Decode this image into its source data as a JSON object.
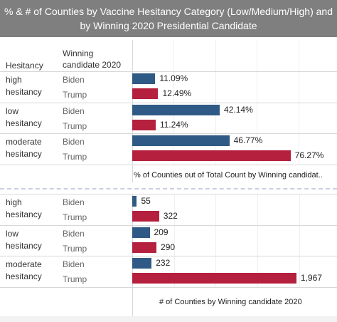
{
  "title": "% & # of Counties by Vaccine Hesitancy Category (Low/Medium/High) and by Winning 2020 Presidential Candidate",
  "headers": {
    "hesitancy": "Hesitancy",
    "candidate": "Winning candidate 2020"
  },
  "colors": {
    "biden": "#2f5a85",
    "trump": "#b5203e"
  },
  "chart_data": [
    {
      "type": "bar",
      "categories": [
        "high hesitancy",
        "low hesitancy",
        "moderate hesitancy"
      ],
      "candidates": [
        "Biden",
        "Trump"
      ],
      "series": [
        {
          "name": "Biden",
          "values": [
            11.09,
            42.14,
            46.77
          ],
          "labels": [
            "11.09%",
            "42.14%",
            "46.77%"
          ]
        },
        {
          "name": "Trump",
          "values": [
            12.49,
            11.24,
            76.27
          ],
          "labels": [
            "12.49%",
            "11.24%",
            "76.27%"
          ]
        }
      ],
      "xlabel": "% of Counties out of Total Count by Winning candidat..",
      "xlim": [
        0,
        100
      ]
    },
    {
      "type": "bar",
      "categories": [
        "high hesitancy",
        "low hesitancy",
        "moderate hesitancy"
      ],
      "candidates": [
        "Biden",
        "Trump"
      ],
      "series": [
        {
          "name": "Biden",
          "values": [
            55,
            209,
            232
          ],
          "labels": [
            "55",
            "209",
            "232"
          ]
        },
        {
          "name": "Trump",
          "values": [
            322,
            290,
            1967
          ],
          "labels": [
            "322",
            "290",
            "1,967"
          ]
        }
      ],
      "xlabel": "# of Counties by Winning candidate 2020",
      "xlim": [
        0,
        2500
      ]
    }
  ]
}
